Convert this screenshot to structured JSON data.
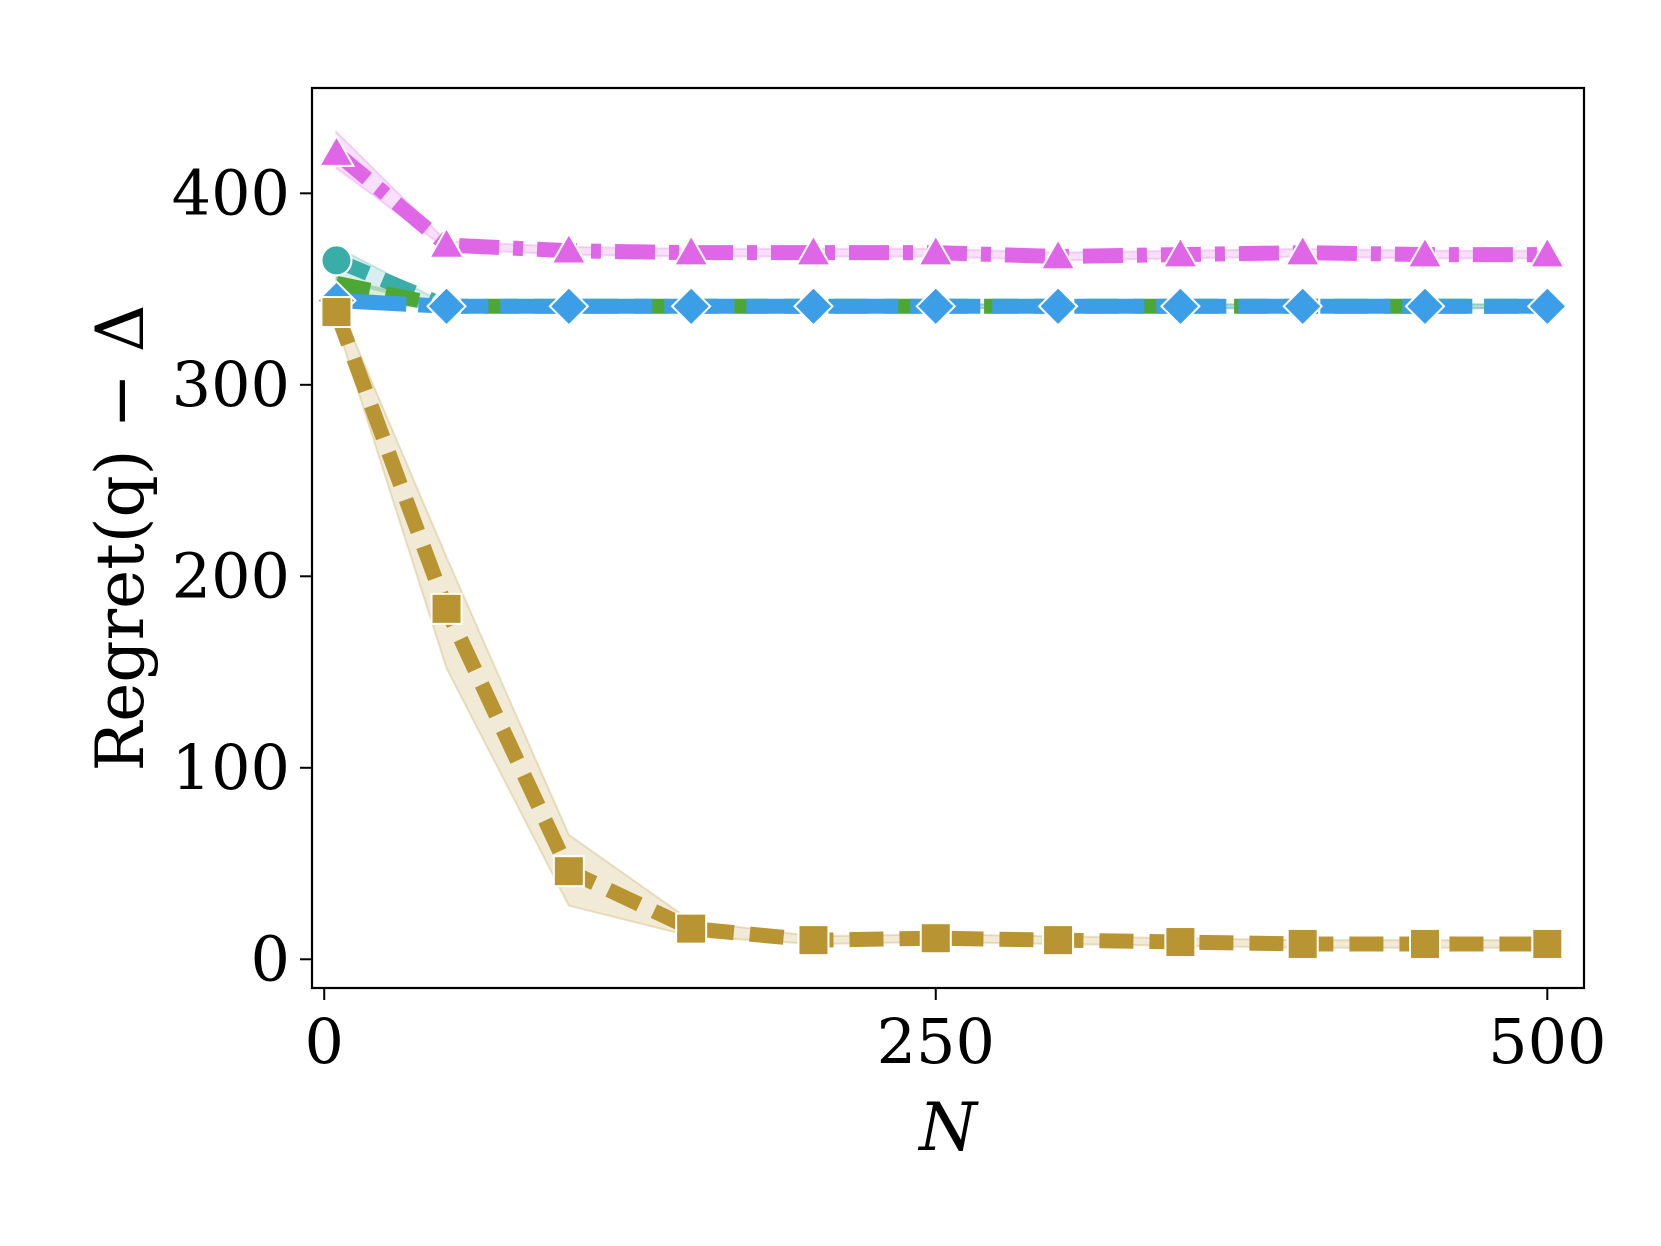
{
  "chart_data": {
    "type": "line",
    "xlabel": "N",
    "ylabel": "Regret(q) − Δ",
    "xlim": [
      -5,
      515
    ],
    "ylim": [
      -15,
      455
    ],
    "xticks": [
      0,
      250,
      500
    ],
    "yticks": [
      0,
      100,
      200,
      300,
      400
    ],
    "xtick_labels": [
      "0",
      "250",
      "500"
    ],
    "ytick_labels": [
      "0",
      "100",
      "200",
      "300",
      "400"
    ],
    "grid": false,
    "legend": "none",
    "series": [
      {
        "color": "#e066e8",
        "marker": "triangle",
        "dash": "dashdot",
        "x": [
          5,
          50,
          100,
          150,
          200,
          250,
          300,
          350,
          400,
          450,
          500
        ],
        "y": [
          421,
          373,
          370,
          369,
          369,
          369,
          367,
          368,
          369,
          368,
          368
        ],
        "band_lo": [
          413,
          371,
          368,
          367,
          367,
          367,
          365,
          366,
          367,
          366,
          366
        ],
        "band_hi": [
          432,
          375,
          372,
          371,
          371,
          371,
          369,
          370,
          371,
          370,
          370
        ]
      },
      {
        "color": "#3aada8",
        "marker": "circle",
        "dash": "dashed",
        "x": [
          5,
          50
        ],
        "y": [
          365,
          341
        ],
        "band_lo": [
          355,
          340
        ],
        "band_hi": [
          372,
          342
        ]
      },
      {
        "color": "#4ca832",
        "marker": "none",
        "dash": "dashed",
        "x": [
          5,
          50,
          100,
          150,
          200,
          250,
          300,
          350,
          400,
          450,
          500
        ],
        "y": [
          353,
          341,
          341,
          341,
          341,
          341,
          341,
          341,
          341,
          341,
          341
        ],
        "band_lo": [
          350,
          340,
          340,
          340,
          340,
          340,
          340,
          340,
          340,
          340,
          340
        ],
        "band_hi": [
          356,
          342,
          342,
          342,
          342,
          342,
          342,
          342,
          342,
          342,
          342
        ]
      },
      {
        "color": "#3d9ee8",
        "marker": "diamond",
        "dash": "longdash",
        "x": [
          5,
          50,
          100,
          150,
          200,
          250,
          300,
          350,
          400,
          450,
          500
        ],
        "y": [
          344,
          341,
          341,
          341,
          341,
          341,
          341,
          341,
          341,
          341,
          341
        ],
        "band_lo": [
          343,
          340,
          340,
          340,
          340,
          340,
          340,
          340,
          340,
          340,
          340
        ],
        "band_hi": [
          345,
          342,
          342,
          342,
          342,
          342,
          342,
          342,
          342,
          342,
          342
        ]
      },
      {
        "color": "#b89432",
        "marker": "square",
        "dash": "dashed",
        "x": [
          5,
          50,
          100,
          150,
          200,
          250,
          300,
          350,
          400,
          450,
          500
        ],
        "y": [
          338,
          183,
          46,
          16,
          10,
          11,
          10,
          9,
          8,
          8,
          8
        ],
        "band_lo": [
          332,
          152,
          28,
          12,
          8,
          9,
          8,
          7,
          6,
          6,
          6
        ],
        "band_hi": [
          345,
          210,
          65,
          20,
          12,
          13,
          12,
          11,
          10,
          10,
          10
        ]
      }
    ]
  }
}
